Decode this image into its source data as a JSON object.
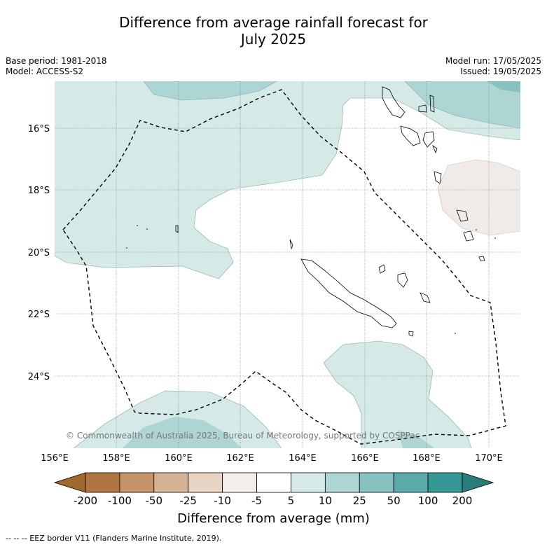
{
  "title_line1": "Difference from average rainfall forecast for",
  "title_line2": "July 2025",
  "base_period": "Base period: 1981-2018",
  "model": "Model: ACCESS-S2",
  "model_run": "Model run: 17/05/2025",
  "issued": "Issued: 19/05/2025",
  "copyright": "© Commonwealth of Australia 2025, Bureau of Meteorology, supported by COSPPac",
  "lat_labels": [
    "16°S",
    "18°S",
    "20°S",
    "22°S",
    "24°S"
  ],
  "lon_labels": [
    "156°E",
    "158°E",
    "160°E",
    "162°E",
    "164°E",
    "166°E",
    "168°E",
    "170°E"
  ],
  "colorbar": {
    "ticks": [
      "-200",
      "-100",
      "-50",
      "-25",
      "-10",
      "-5",
      "5",
      "10",
      "25",
      "50",
      "100",
      "200"
    ],
    "colors": [
      "#a0672e",
      "#b07540",
      "#c49468",
      "#d5b394",
      "#e8d4c2",
      "#f3eee9",
      "#ffffff",
      "#d5e9e7",
      "#add5d4",
      "#87c1c0",
      "#5aaaa9",
      "#359894",
      "#2a7c7a"
    ],
    "label": "Difference from average (mm)"
  },
  "legend_eez": "--  --  -- EEZ border V11 (Flanders Marine Institute, 2019)."
}
